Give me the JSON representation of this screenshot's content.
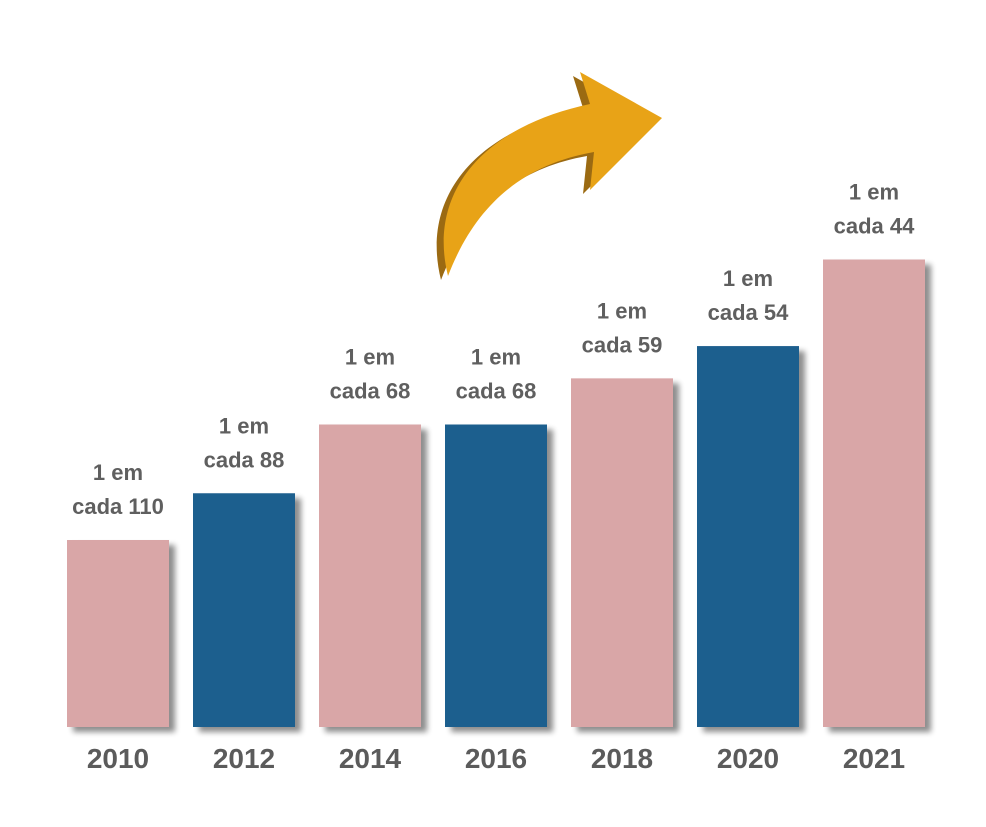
{
  "chart_data": {
    "type": "bar",
    "title": "",
    "xlabel": "",
    "ylabel": "",
    "categories": [
      "2010",
      "2012",
      "2014",
      "2016",
      "2018",
      "2020",
      "2021"
    ],
    "values": [
      110,
      88,
      68,
      68,
      59,
      54,
      44
    ],
    "value_labels": [
      [
        "1 em",
        "cada 110"
      ],
      [
        "1 em",
        "cada 88"
      ],
      [
        "1 em",
        "cada 68"
      ],
      [
        "1 em",
        "cada 68"
      ],
      [
        "1 em",
        "cada 59"
      ],
      [
        "1 em",
        "cada 54"
      ],
      [
        "1 em",
        "cada 44"
      ]
    ],
    "bar_colors": [
      "#d9a6a7",
      "#1f5f8e",
      "#d9a6a7",
      "#1f5f8e",
      "#d9a6a7",
      "#1f5f8e",
      "#d9a6a7"
    ],
    "grid": false,
    "legend": "none",
    "annotation": "upward-arrow"
  },
  "colors": {
    "pink": "#d9a6a7",
    "blue": "#1f5f8e",
    "arrow": "#e8a317",
    "arrow_shadow": "#9b6a12",
    "text": "#5b5b5b"
  }
}
